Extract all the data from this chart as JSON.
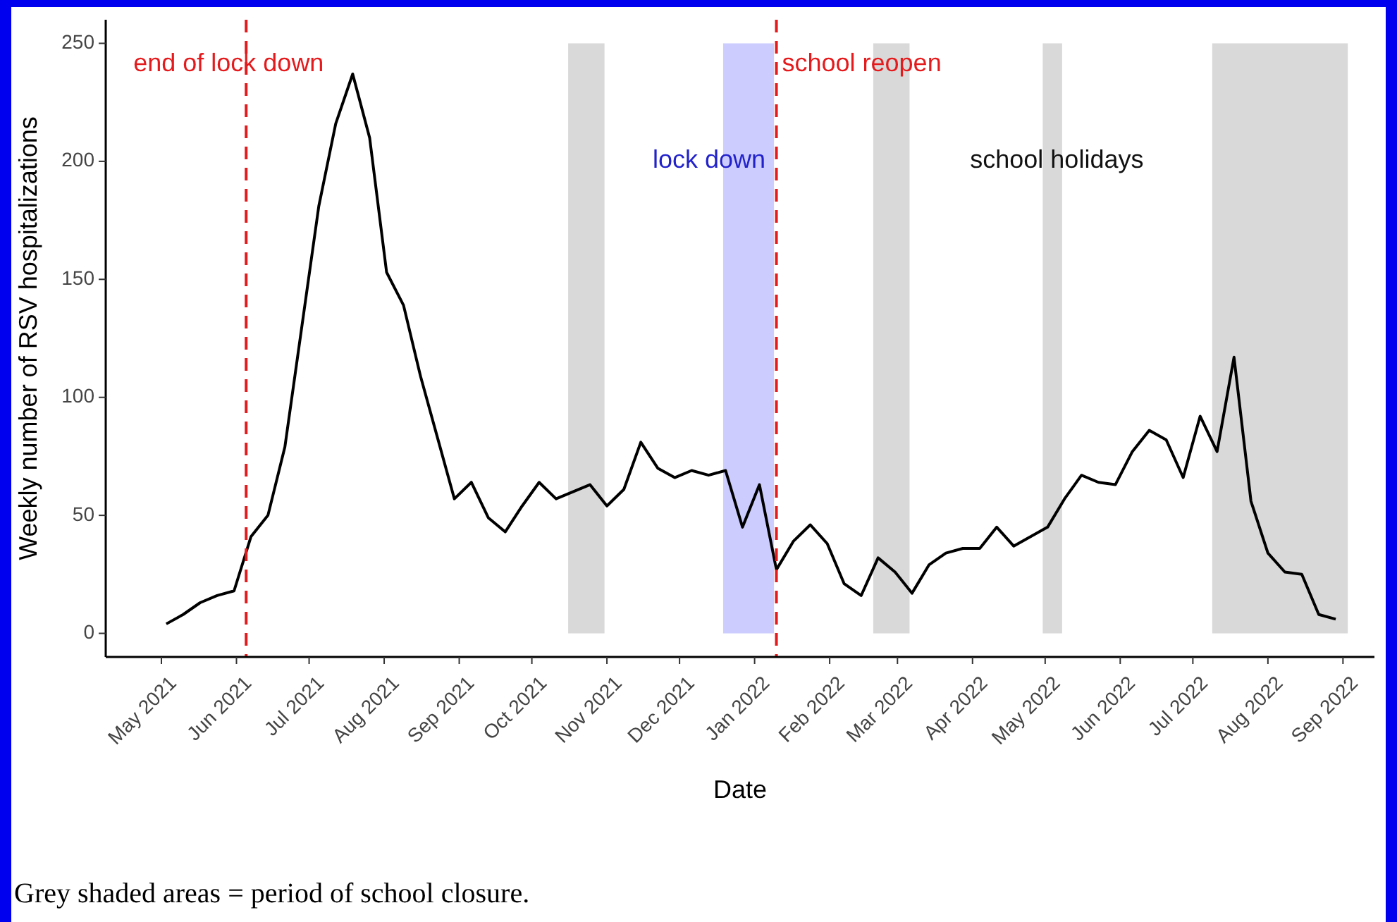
{
  "chart_data": {
    "type": "line",
    "xlabel": "Date",
    "ylabel": "Weekly number of RSV hospitalizations",
    "x": [
      "2021-05-03",
      "2021-05-10",
      "2021-05-17",
      "2021-05-24",
      "2021-05-31",
      "2021-06-07",
      "2021-06-14",
      "2021-06-21",
      "2021-06-28",
      "2021-07-05",
      "2021-07-12",
      "2021-07-19",
      "2021-07-26",
      "2021-08-02",
      "2021-08-09",
      "2021-08-16",
      "2021-08-23",
      "2021-08-30",
      "2021-09-06",
      "2021-09-13",
      "2021-09-20",
      "2021-09-27",
      "2021-10-04",
      "2021-10-11",
      "2021-10-18",
      "2021-10-25",
      "2021-11-01",
      "2021-11-08",
      "2021-11-15",
      "2021-11-22",
      "2021-11-29",
      "2021-12-06",
      "2021-12-13",
      "2021-12-20",
      "2021-12-27",
      "2022-01-03",
      "2022-01-10",
      "2022-01-17",
      "2022-01-24",
      "2022-01-31",
      "2022-02-07",
      "2022-02-14",
      "2022-02-21",
      "2022-02-28",
      "2022-03-07",
      "2022-03-14",
      "2022-03-21",
      "2022-03-28",
      "2022-04-04",
      "2022-04-11",
      "2022-04-18",
      "2022-04-25",
      "2022-05-02",
      "2022-05-09",
      "2022-05-16",
      "2022-05-23",
      "2022-05-30",
      "2022-06-06",
      "2022-06-13",
      "2022-06-20",
      "2022-06-27",
      "2022-07-04",
      "2022-07-11",
      "2022-07-18",
      "2022-07-25",
      "2022-08-01",
      "2022-08-08",
      "2022-08-15",
      "2022-08-22",
      "2022-08-29"
    ],
    "series": [
      {
        "color": "#000000",
        "values": [
          4,
          8,
          13,
          16,
          18,
          41,
          50,
          79,
          130,
          181,
          216,
          237,
          210,
          153,
          139,
          109,
          83,
          57,
          64,
          49,
          43,
          54,
          64,
          57,
          60,
          63,
          54,
          61,
          81,
          70,
          66,
          69,
          67,
          69,
          45,
          63,
          27,
          39,
          46,
          38,
          21,
          16,
          32,
          26,
          17,
          29,
          34,
          36,
          36,
          45,
          37,
          41,
          45,
          57,
          67,
          64,
          63,
          77,
          86,
          82,
          66,
          92,
          77,
          117,
          56,
          34,
          26,
          25,
          8,
          6
        ]
      }
    ],
    "xlim": [
      "2021-04-08",
      "2022-09-14"
    ],
    "xticks": [
      {
        "value": "2021-05-01",
        "label": "May 2021"
      },
      {
        "value": "2021-06-01",
        "label": "Jun 2021"
      },
      {
        "value": "2021-07-01",
        "label": "Jul 2021"
      },
      {
        "value": "2021-08-01",
        "label": "Aug 2021"
      },
      {
        "value": "2021-09-01",
        "label": "Sep 2021"
      },
      {
        "value": "2021-10-01",
        "label": "Oct 2021"
      },
      {
        "value": "2021-11-01",
        "label": "Nov 2021"
      },
      {
        "value": "2021-12-01",
        "label": "Dec 2021"
      },
      {
        "value": "2022-01-01",
        "label": "Jan 2022"
      },
      {
        "value": "2022-02-01",
        "label": "Feb 2022"
      },
      {
        "value": "2022-03-01",
        "label": "Mar 2022"
      },
      {
        "value": "2022-04-01",
        "label": "Apr 2022"
      },
      {
        "value": "2022-05-01",
        "label": "May 2022"
      },
      {
        "value": "2022-06-01",
        "label": "Jun 2022"
      },
      {
        "value": "2022-07-01",
        "label": "Jul 2022"
      },
      {
        "value": "2022-08-01",
        "label": "Aug 2022"
      },
      {
        "value": "2022-09-01",
        "label": "Sep 2022"
      }
    ],
    "ylim": [
      -10,
      260
    ],
    "yticks": [
      0,
      50,
      100,
      150,
      200,
      250
    ],
    "ref_lines": [
      {
        "axis": "x",
        "value": "2021-06-05",
        "label": "end of lock down",
        "color": "#e41a1c",
        "line_style": "dashed"
      },
      {
        "axis": "x",
        "value": "2022-01-10",
        "label": "school reopen",
        "color": "#e41a1c",
        "line_style": "dashed"
      }
    ],
    "bands": [
      {
        "axis": "x",
        "from": "2021-10-16",
        "to": "2021-10-31",
        "color": "#d9d9d9"
      },
      {
        "axis": "x",
        "from": "2021-12-19",
        "to": "2022-01-09",
        "label": "lock down",
        "color": "#ccccff"
      },
      {
        "axis": "x",
        "from": "2022-02-19",
        "to": "2022-03-06",
        "color": "#d9d9d9"
      },
      {
        "axis": "x",
        "from": "2022-04-30",
        "to": "2022-05-08",
        "color": "#d9d9d9"
      },
      {
        "axis": "x",
        "from": "2022-07-09",
        "to": "2022-09-03",
        "color": "#d9d9d9"
      }
    ],
    "annotations": [
      {
        "text": "school holidays",
        "x": "2022-04-30",
        "y": 200
      },
      "Grey shaded areas = period of school closure."
    ],
    "grid": false
  }
}
